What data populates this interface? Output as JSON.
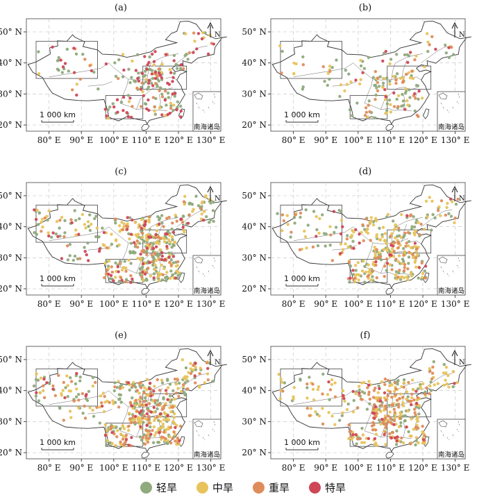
{
  "panels": [
    {
      "label": "(a)",
      "seed": 11,
      "counts": {
        "light": 90,
        "moderate": 25,
        "severe": 25,
        "extreme": 70
      }
    },
    {
      "label": "(b)",
      "seed": 23,
      "counts": {
        "light": 70,
        "moderate": 45,
        "severe": 30,
        "extreme": 14
      }
    },
    {
      "label": "(c)",
      "seed": 37,
      "counts": {
        "light": 200,
        "moderate": 140,
        "severe": 60,
        "extreme": 60
      }
    },
    {
      "label": "(d)",
      "seed": 41,
      "counts": {
        "light": 120,
        "moderate": 140,
        "severe": 70,
        "extreme": 22
      }
    },
    {
      "label": "(e)",
      "seed": 53,
      "counts": {
        "light": 170,
        "moderate": 170,
        "severe": 110,
        "extreme": 40
      }
    },
    {
      "label": "(f)",
      "seed": 67,
      "counts": {
        "light": 90,
        "moderate": 160,
        "severe": 110,
        "extreme": 30
      }
    }
  ],
  "y_ticks": [
    "20° N",
    "30° N",
    "40° N",
    "50° N"
  ],
  "x_ticks": [
    "80° E",
    "90° E",
    "100° E",
    "110° E",
    "120° E",
    "130° E"
  ],
  "scale_bar_label": "1 000 km",
  "north_label": "N",
  "inset_label": "南海诸岛",
  "legend": [
    {
      "label": "轻旱",
      "color": "#8faa7c"
    },
    {
      "label": "中旱",
      "color": "#e8c35c"
    },
    {
      "label": "重旱",
      "color": "#df8c5c"
    },
    {
      "label": "特旱",
      "color": "#cf4657"
    }
  ],
  "colors": {
    "light": "#8faa7c",
    "moderate": "#e8c35c",
    "severe": "#df8c5c",
    "extreme": "#cf4657"
  }
}
